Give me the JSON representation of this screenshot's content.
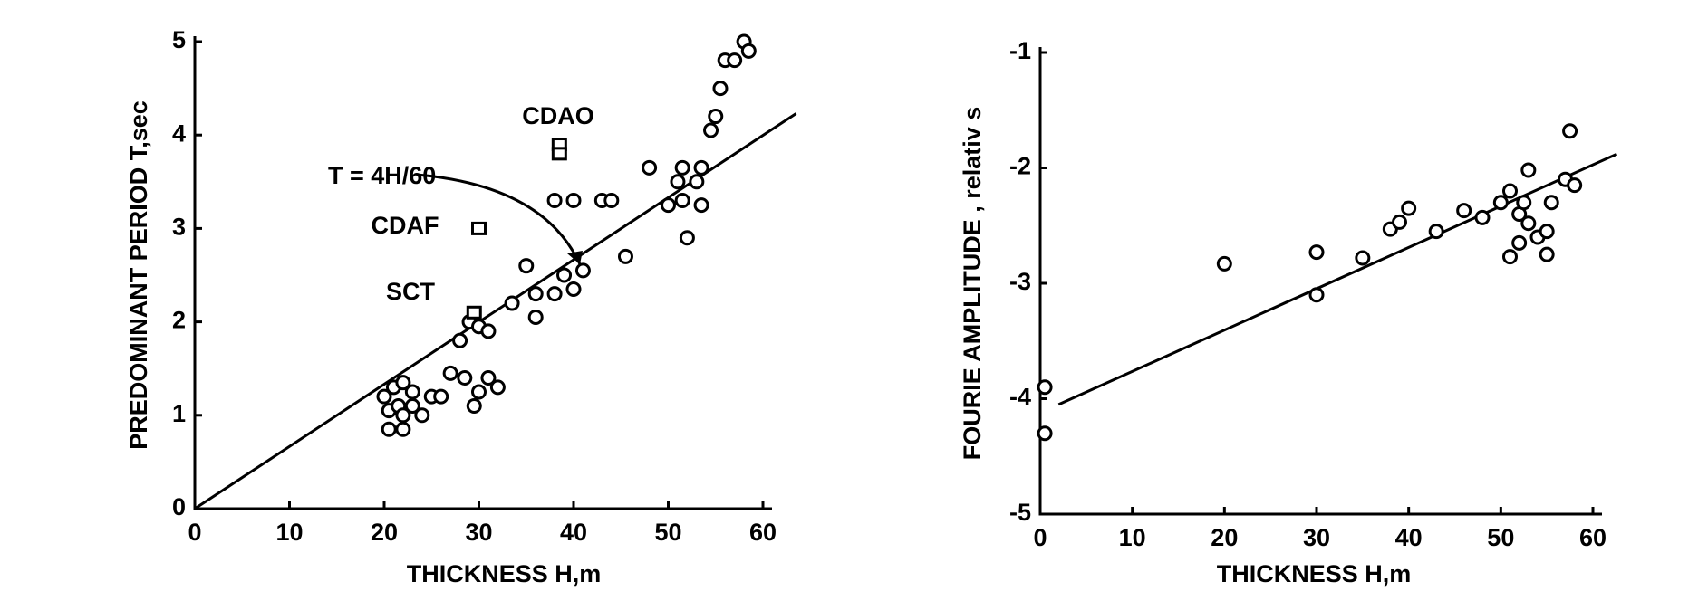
{
  "chart_data": [
    {
      "type": "scatter",
      "xlabel": "THICKNESS  H,m",
      "ylabel": "PREDOMINANT PERIOD  T,sec",
      "xlim": [
        0,
        60
      ],
      "ylim": [
        0,
        5
      ],
      "xticks": [
        0,
        10,
        20,
        30,
        40,
        50,
        60
      ],
      "yticks": [
        0,
        1,
        2,
        3,
        4,
        5
      ],
      "annotations": [
        "T = 4H/60",
        "CDAO",
        "CDAF",
        "SCT"
      ],
      "series": [
        {
          "marker": "circle",
          "color": "#000000",
          "x": [
            20,
            21,
            22,
            23,
            20.5,
            21.5,
            23,
            20.5,
            22,
            22,
            24,
            25,
            26,
            27,
            28.5,
            29.5,
            30,
            31,
            32,
            28,
            29,
            30,
            31,
            33.5,
            35,
            36,
            36,
            38,
            39,
            40,
            41,
            38,
            40,
            43,
            44,
            45.5,
            48,
            50,
            51,
            51.5,
            51.5,
            52,
            53,
            53.5,
            53.5,
            54.5,
            55,
            55.5,
            56,
            57,
            58,
            58.5
          ],
          "values": [
            1.2,
            1.3,
            1.35,
            1.25,
            1.05,
            1.1,
            1.1,
            0.85,
            0.85,
            1.0,
            1.0,
            1.2,
            1.2,
            1.45,
            1.4,
            1.1,
            1.25,
            1.4,
            1.3,
            1.8,
            2.0,
            1.95,
            1.9,
            2.2,
            2.6,
            2.05,
            2.3,
            2.3,
            2.5,
            2.35,
            2.55,
            3.3,
            3.3,
            3.3,
            3.3,
            2.7,
            3.65,
            3.25,
            3.5,
            3.65,
            3.3,
            2.9,
            3.5,
            3.65,
            3.25,
            4.05,
            4.2,
            4.5,
            4.8,
            4.8,
            5.0,
            4.9
          ]
        },
        {
          "marker": "square",
          "color": "#000000",
          "x": [
            38.5,
            38.5,
            30,
            29.5
          ],
          "values": [
            3.9,
            3.8,
            3.0,
            2.1
          ]
        }
      ],
      "fit_line": {
        "x": [
          0,
          63.5
        ],
        "values": [
          0,
          4.23
        ]
      }
    },
    {
      "type": "scatter",
      "xlabel": "THICKNESS  H,m",
      "ylabel": "FOURIE AMPLITUDE , relativ s",
      "xlim": [
        0,
        60
      ],
      "ylim": [
        -5,
        -1
      ],
      "xticks": [
        0,
        10,
        20,
        30,
        40,
        50,
        60
      ],
      "yticks": [
        -5,
        -4,
        -3,
        -2,
        -1
      ],
      "series": [
        {
          "marker": "circle",
          "color": "#000000",
          "x": [
            0.5,
            0.5,
            20,
            30,
            30,
            35,
            38,
            39,
            40,
            43,
            46,
            48,
            50,
            51,
            51,
            52,
            52,
            52.5,
            53,
            53,
            54,
            55,
            55,
            55.5,
            57,
            57.5,
            58
          ],
          "values": [
            -3.9,
            -4.3,
            -2.83,
            -2.73,
            -3.1,
            -2.78,
            -2.53,
            -2.47,
            -2.35,
            -2.55,
            -2.37,
            -2.43,
            -2.3,
            -2.2,
            -2.77,
            -2.4,
            -2.65,
            -2.3,
            -2.02,
            -2.48,
            -2.6,
            -2.55,
            -2.75,
            -2.3,
            -2.1,
            -1.68,
            -2.15
          ]
        }
      ],
      "fit_line": {
        "x": [
          2,
          62.6
        ],
        "values": [
          -4.05,
          -1.88
        ]
      }
    }
  ]
}
